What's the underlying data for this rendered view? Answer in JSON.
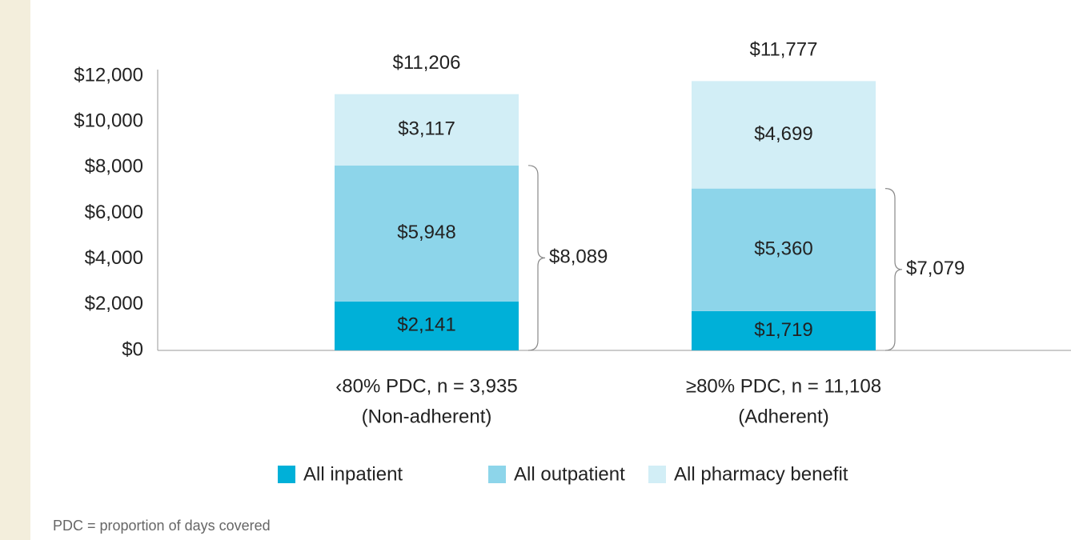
{
  "chart_data": {
    "type": "stacked_bar",
    "categories": [
      [
        "‹80% PDC, n = 3,935",
        "(Non-adherent)"
      ],
      [
        "≥80% PDC, n = 11,108",
        "(Adherent)"
      ]
    ],
    "series": [
      {
        "name": "All inpatient",
        "color": "#00b0d8",
        "values": [
          2141,
          1719
        ],
        "value_labels": [
          "$2,141",
          "$1,719"
        ]
      },
      {
        "name": "All outpatient",
        "color": "#8dd5ea",
        "values": [
          5948,
          5360
        ],
        "value_labels": [
          "$5,948",
          "$5,360"
        ]
      },
      {
        "name": "All pharmacy benefit",
        "color": "#d2eef6",
        "values": [
          3117,
          4699
        ],
        "value_labels": [
          "$3,117",
          "$4,699"
        ]
      }
    ],
    "totals": [
      11206,
      11777
    ],
    "total_labels": [
      "$11,206",
      "$11,777"
    ],
    "bracket_values": [
      8089,
      7079
    ],
    "bracket_labels": [
      "$8,089",
      "$7,079"
    ],
    "ylim": [
      0,
      12000
    ],
    "yticks": [
      {
        "value": 0,
        "label": "$0"
      },
      {
        "value": 2000,
        "label": "$2,000"
      },
      {
        "value": 4000,
        "label": "$4,000"
      },
      {
        "value": 6000,
        "label": "$6,000"
      },
      {
        "value": 8000,
        "label": "$8,000"
      },
      {
        "value": 10000,
        "label": "$10,000"
      },
      {
        "value": 12000,
        "label": "$12,000"
      }
    ],
    "legend": "bottom",
    "footnote": "PDC = proportion of days covered"
  }
}
